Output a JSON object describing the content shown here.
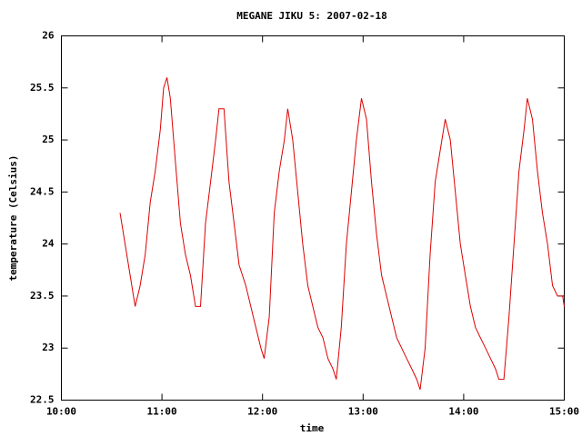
{
  "chart_data": {
    "type": "line",
    "title": "MEGANE JIKU 5: 2007-02-18",
    "x_label": "time",
    "y_label": "temperature (Celsius)",
    "xlim": [
      600,
      900
    ],
    "xticks": [
      {
        "value": 600,
        "label": "10:00"
      },
      {
        "value": 660,
        "label": "11:00"
      },
      {
        "value": 720,
        "label": "12:00"
      },
      {
        "value": 780,
        "label": "13:00"
      },
      {
        "value": 840,
        "label": "14:00"
      },
      {
        "value": 900,
        "label": "15:00"
      }
    ],
    "ylim": [
      22.5,
      26
    ],
    "yticks": [
      22.5,
      23,
      23.5,
      24,
      24.5,
      25,
      25.5,
      26
    ],
    "series": [
      {
        "color": "#dd0000",
        "x": [
          635,
          641,
          644,
          647,
          650,
          653,
          656,
          659,
          661,
          663,
          665,
          668,
          671,
          674,
          677,
          680,
          683,
          686,
          689,
          692,
          694,
          697,
          700,
          703,
          706,
          710,
          713,
          716,
          719,
          721,
          724,
          727,
          730,
          733,
          735,
          738,
          741,
          744,
          747,
          750,
          753,
          756,
          759,
          762,
          764,
          767,
          770,
          773,
          776,
          779,
          782,
          785,
          788,
          791,
          794,
          797,
          800,
          803,
          806,
          809,
          812,
          814,
          817,
          820,
          823,
          826,
          829,
          832,
          835,
          838,
          841,
          844,
          847,
          850,
          853,
          856,
          859,
          861,
          864,
          867,
          870,
          873,
          876,
          878,
          881,
          884,
          887,
          890,
          893,
          896,
          899,
          900
        ],
        "values": [
          24.3,
          23.7,
          23.4,
          23.6,
          23.9,
          24.4,
          24.7,
          25.1,
          25.5,
          25.6,
          25.4,
          24.8,
          24.2,
          23.9,
          23.7,
          23.4,
          23.4,
          24.2,
          24.6,
          25.0,
          25.3,
          25.3,
          24.6,
          24.2,
          23.8,
          23.6,
          23.4,
          23.2,
          23.0,
          22.9,
          23.3,
          24.3,
          24.7,
          25.0,
          25.3,
          25.0,
          24.5,
          24.0,
          23.6,
          23.4,
          23.2,
          23.1,
          22.9,
          22.8,
          22.7,
          23.2,
          24.0,
          24.5,
          25.0,
          25.4,
          25.2,
          24.6,
          24.1,
          23.7,
          23.5,
          23.3,
          23.1,
          23.0,
          22.9,
          22.8,
          22.7,
          22.6,
          23.0,
          23.9,
          24.6,
          24.9,
          25.2,
          25.0,
          24.5,
          24.0,
          23.7,
          23.4,
          23.2,
          23.1,
          23.0,
          22.9,
          22.8,
          22.7,
          22.7,
          23.3,
          24.0,
          24.7,
          25.1,
          25.4,
          25.2,
          24.7,
          24.3,
          24.0,
          23.6,
          23.5,
          23.5,
          23.4
        ]
      }
    ]
  }
}
